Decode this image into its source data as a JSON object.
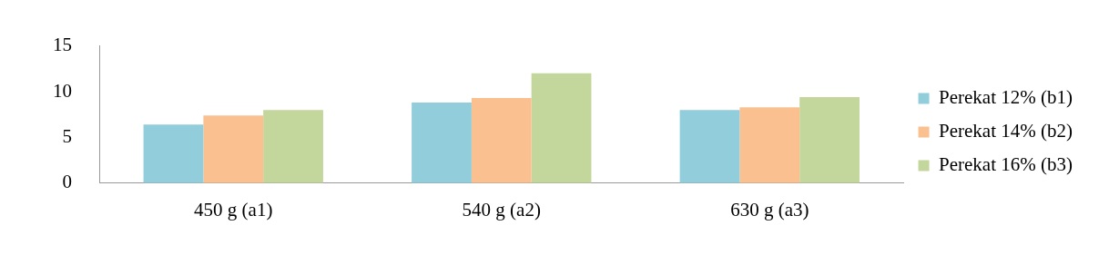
{
  "chart_data": {
    "type": "bar",
    "categories": [
      "450 g (a1)",
      "540 g (a2)",
      "630 g (a3)"
    ],
    "series": [
      {
        "name": "Perekat 12% (b1)",
        "color": "#92cddc",
        "values": [
          6.4,
          8.8,
          8.0
        ]
      },
      {
        "name": "Perekat 14% (b2)",
        "color": "#fac090",
        "values": [
          7.4,
          9.3,
          8.3
        ]
      },
      {
        "name": "Perekat 16% (b3)",
        "color": "#c3d69b",
        "values": [
          8.0,
          12.0,
          9.4
        ]
      }
    ],
    "ylim": [
      0,
      15
    ],
    "yticks": [
      0,
      5,
      10,
      15
    ],
    "grid": false,
    "legend": "right"
  }
}
